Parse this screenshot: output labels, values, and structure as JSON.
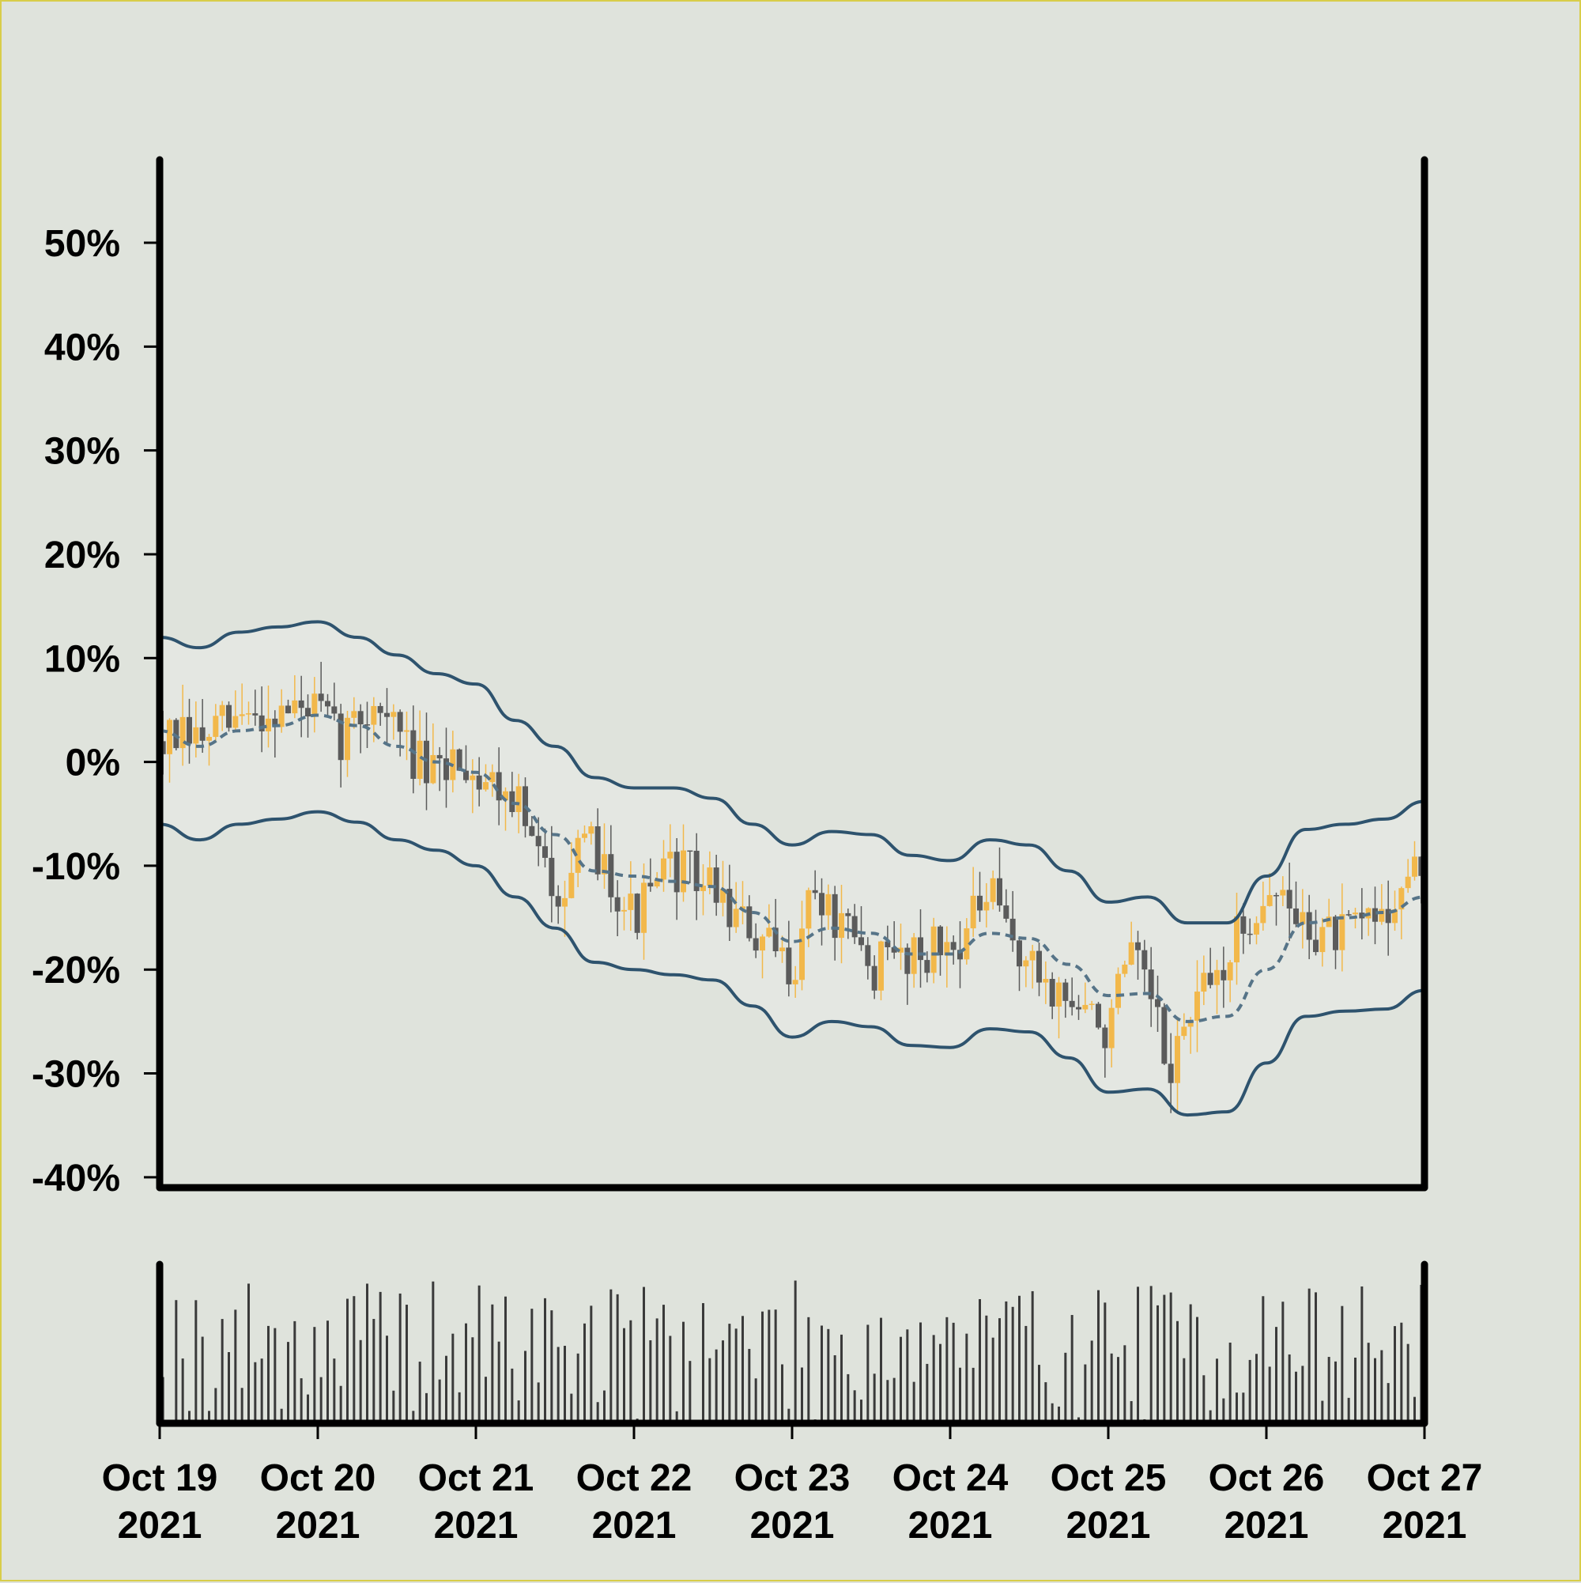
{
  "chart_data": [
    {
      "type": "candlestick",
      "title": "",
      "ylabel": "",
      "y_tick_labels": [
        "50%",
        "40%",
        "30%",
        "20%",
        "10%",
        "0%",
        "-10%",
        "-20%",
        "-30%",
        "-40%"
      ],
      "y_tick_values": [
        50,
        40,
        30,
        20,
        10,
        0,
        -10,
        -20,
        -30,
        -40
      ],
      "ylim": [
        -41,
        58
      ],
      "x_range": [
        "2021-10-19",
        "2021-10-27"
      ],
      "candle_colors": {
        "up": "#f2b84b",
        "down": "#5b5b5b"
      },
      "band_color": "#2e536e",
      "band_fill": "#e4e7e2",
      "middle_line_style": "dashed",
      "center_path": [
        [
          "2021-10-19T00:00",
          2
        ],
        [
          "2021-10-19T06:00",
          2
        ],
        [
          "2021-10-19T12:00",
          4
        ],
        [
          "2021-10-19T18:00",
          5
        ],
        [
          "2021-10-20T00:00",
          5
        ],
        [
          "2021-10-20T03:00",
          2
        ],
        [
          "2021-10-20T06:00",
          4
        ],
        [
          "2021-10-20T09:00",
          6
        ],
        [
          "2021-10-20T15:00",
          0
        ],
        [
          "2021-10-20T18:00",
          -2
        ],
        [
          "2021-10-20T21:00",
          1
        ],
        [
          "2021-10-21T00:00",
          -1
        ],
        [
          "2021-10-21T06:00",
          -3
        ],
        [
          "2021-10-21T09:00",
          -9
        ],
        [
          "2021-10-21T12:00",
          -12
        ],
        [
          "2021-10-21T18:00",
          -8
        ],
        [
          "2021-10-22T00:00",
          -15
        ],
        [
          "2021-10-22T06:00",
          -10
        ],
        [
          "2021-10-22T12:00",
          -12
        ],
        [
          "2021-10-22T18:00",
          -17
        ],
        [
          "2021-10-23T00:00",
          -20
        ],
        [
          "2021-10-23T03:00",
          -12
        ],
        [
          "2021-10-23T06:00",
          -15
        ],
        [
          "2021-10-23T12:00",
          -20
        ],
        [
          "2021-10-23T18:00",
          -18
        ],
        [
          "2021-10-24T00:00",
          -18
        ],
        [
          "2021-10-24T06:00",
          -13
        ],
        [
          "2021-10-24T12:00",
          -20
        ],
        [
          "2021-10-24T18:00",
          -23
        ],
        [
          "2021-10-25T00:00",
          -26
        ],
        [
          "2021-10-25T03:00",
          -19
        ],
        [
          "2021-10-25T06:00",
          -22
        ],
        [
          "2021-10-25T09:00",
          -30
        ],
        [
          "2021-10-25T12:00",
          -25
        ],
        [
          "2021-10-25T18:00",
          -19
        ],
        [
          "2021-10-26T00:00",
          -12
        ],
        [
          "2021-10-26T06:00",
          -16
        ],
        [
          "2021-10-26T12:00",
          -17
        ],
        [
          "2021-10-26T18:00",
          -14
        ],
        [
          "2021-10-27T00:00",
          -10
        ]
      ],
      "upper_band": [
        [
          "2021-10-19T00:00",
          12
        ],
        [
          "2021-10-19T06:00",
          11
        ],
        [
          "2021-10-19T12:00",
          12.5
        ],
        [
          "2021-10-19T18:00",
          13
        ],
        [
          "2021-10-20T00:00",
          13.5
        ],
        [
          "2021-10-20T06:00",
          12
        ],
        [
          "2021-10-20T12:00",
          10.3
        ],
        [
          "2021-10-20T18:00",
          8.5
        ],
        [
          "2021-10-21T00:00",
          7.5
        ],
        [
          "2021-10-21T06:00",
          4
        ],
        [
          "2021-10-21T12:00",
          1.5
        ],
        [
          "2021-10-21T18:00",
          -1.5
        ],
        [
          "2021-10-22T00:00",
          -2.5
        ],
        [
          "2021-10-22T06:00",
          -2.5
        ],
        [
          "2021-10-22T12:00",
          -3.5
        ],
        [
          "2021-10-22T18:00",
          -6
        ],
        [
          "2021-10-23T00:00",
          -8
        ],
        [
          "2021-10-23T06:00",
          -6.7
        ],
        [
          "2021-10-23T12:00",
          -7
        ],
        [
          "2021-10-23T18:00",
          -9
        ],
        [
          "2021-10-24T00:00",
          -9.5
        ],
        [
          "2021-10-24T06:00",
          -7.5
        ],
        [
          "2021-10-24T12:00",
          -8
        ],
        [
          "2021-10-24T18:00",
          -10.5
        ],
        [
          "2021-10-25T00:00",
          -13.5
        ],
        [
          "2021-10-25T06:00",
          -13
        ],
        [
          "2021-10-25T12:00",
          -15.5
        ],
        [
          "2021-10-25T18:00",
          -15.5
        ],
        [
          "2021-10-26T00:00",
          -11
        ],
        [
          "2021-10-26T06:00",
          -6.5
        ],
        [
          "2021-10-26T12:00",
          -6
        ],
        [
          "2021-10-26T18:00",
          -5.5
        ],
        [
          "2021-10-27T00:00",
          -3.8
        ]
      ],
      "middle_band": [
        [
          "2021-10-19T00:00",
          3
        ],
        [
          "2021-10-19T06:00",
          1.5
        ],
        [
          "2021-10-19T12:00",
          3
        ],
        [
          "2021-10-19T18:00",
          3.5
        ],
        [
          "2021-10-20T00:00",
          4.5
        ],
        [
          "2021-10-20T06:00",
          3.5
        ],
        [
          "2021-10-20T12:00",
          1.5
        ],
        [
          "2021-10-20T18:00",
          0
        ],
        [
          "2021-10-21T00:00",
          -1
        ],
        [
          "2021-10-21T06:00",
          -4
        ],
        [
          "2021-10-21T12:00",
          -7
        ],
        [
          "2021-10-21T18:00",
          -10.5
        ],
        [
          "2021-10-22T00:00",
          -11
        ],
        [
          "2021-10-22T06:00",
          -11.5
        ],
        [
          "2021-10-22T12:00",
          -12
        ],
        [
          "2021-10-22T18:00",
          -14.5
        ],
        [
          "2021-10-23T00:00",
          -17.3
        ],
        [
          "2021-10-23T06:00",
          -16
        ],
        [
          "2021-10-23T12:00",
          -16.5
        ],
        [
          "2021-10-23T18:00",
          -18.5
        ],
        [
          "2021-10-24T00:00",
          -18.5
        ],
        [
          "2021-10-24T06:00",
          -16.5
        ],
        [
          "2021-10-24T12:00",
          -17
        ],
        [
          "2021-10-24T18:00",
          -19.5
        ],
        [
          "2021-10-25T00:00",
          -22.5
        ],
        [
          "2021-10-25T06:00",
          -22.3
        ],
        [
          "2021-10-25T12:00",
          -25
        ],
        [
          "2021-10-25T18:00",
          -24.5
        ],
        [
          "2021-10-26T00:00",
          -20
        ],
        [
          "2021-10-26T06:00",
          -15.5
        ],
        [
          "2021-10-26T12:00",
          -15
        ],
        [
          "2021-10-26T18:00",
          -14.5
        ],
        [
          "2021-10-27T00:00",
          -13
        ]
      ],
      "lower_band": [
        [
          "2021-10-19T00:00",
          -6
        ],
        [
          "2021-10-19T06:00",
          -7.5
        ],
        [
          "2021-10-19T12:00",
          -6
        ],
        [
          "2021-10-19T18:00",
          -5.5
        ],
        [
          "2021-10-20T00:00",
          -4.8
        ],
        [
          "2021-10-20T06:00",
          -5.8
        ],
        [
          "2021-10-20T12:00",
          -7.5
        ],
        [
          "2021-10-20T18:00",
          -8.5
        ],
        [
          "2021-10-21T00:00",
          -10
        ],
        [
          "2021-10-21T06:00",
          -13
        ],
        [
          "2021-10-21T12:00",
          -16
        ],
        [
          "2021-10-21T18:00",
          -19.3
        ],
        [
          "2021-10-22T00:00",
          -20
        ],
        [
          "2021-10-22T06:00",
          -20.5
        ],
        [
          "2021-10-22T12:00",
          -21
        ],
        [
          "2021-10-22T18:00",
          -23.5
        ],
        [
          "2021-10-23T00:00",
          -26.5
        ],
        [
          "2021-10-23T06:00",
          -25
        ],
        [
          "2021-10-23T12:00",
          -25.5
        ],
        [
          "2021-10-23T18:00",
          -27.3
        ],
        [
          "2021-10-24T00:00",
          -27.5
        ],
        [
          "2021-10-24T06:00",
          -25.7
        ],
        [
          "2021-10-24T12:00",
          -26
        ],
        [
          "2021-10-24T18:00",
          -28.5
        ],
        [
          "2021-10-25T00:00",
          -31.8
        ],
        [
          "2021-10-25T06:00",
          -31.5
        ],
        [
          "2021-10-25T12:00",
          -34
        ],
        [
          "2021-10-25T18:00",
          -33.7
        ],
        [
          "2021-10-26T00:00",
          -29
        ],
        [
          "2021-10-26T06:00",
          -24.5
        ],
        [
          "2021-10-26T12:00",
          -24
        ],
        [
          "2021-10-26T18:00",
          -23.8
        ],
        [
          "2021-10-27T00:00",
          -22
        ]
      ],
      "candle_noise": {
        "seed": 7,
        "body_amplitude": 2.4,
        "wick_amplitude": 3.2
      }
    },
    {
      "type": "bar",
      "title": "",
      "ylabel": "",
      "bar_color": "#3a3a3a",
      "volume_relative_max": 1.0,
      "volume_seed": 19,
      "x_tick_labels": [
        [
          "Oct 19",
          "2021"
        ],
        [
          "Oct 20",
          "2021"
        ],
        [
          "Oct 21",
          "2021"
        ],
        [
          "Oct 22",
          "2021"
        ],
        [
          "Oct 23",
          "2021"
        ],
        [
          "Oct 24",
          "2021"
        ],
        [
          "Oct 25",
          "2021"
        ],
        [
          "Oct 26",
          "2021"
        ],
        [
          "Oct 27",
          "2021"
        ]
      ],
      "x_tick_dates": [
        "2021-10-19",
        "2021-10-20",
        "2021-10-21",
        "2021-10-22",
        "2021-10-23",
        "2021-10-24",
        "2021-10-25",
        "2021-10-26",
        "2021-10-27"
      ]
    }
  ]
}
